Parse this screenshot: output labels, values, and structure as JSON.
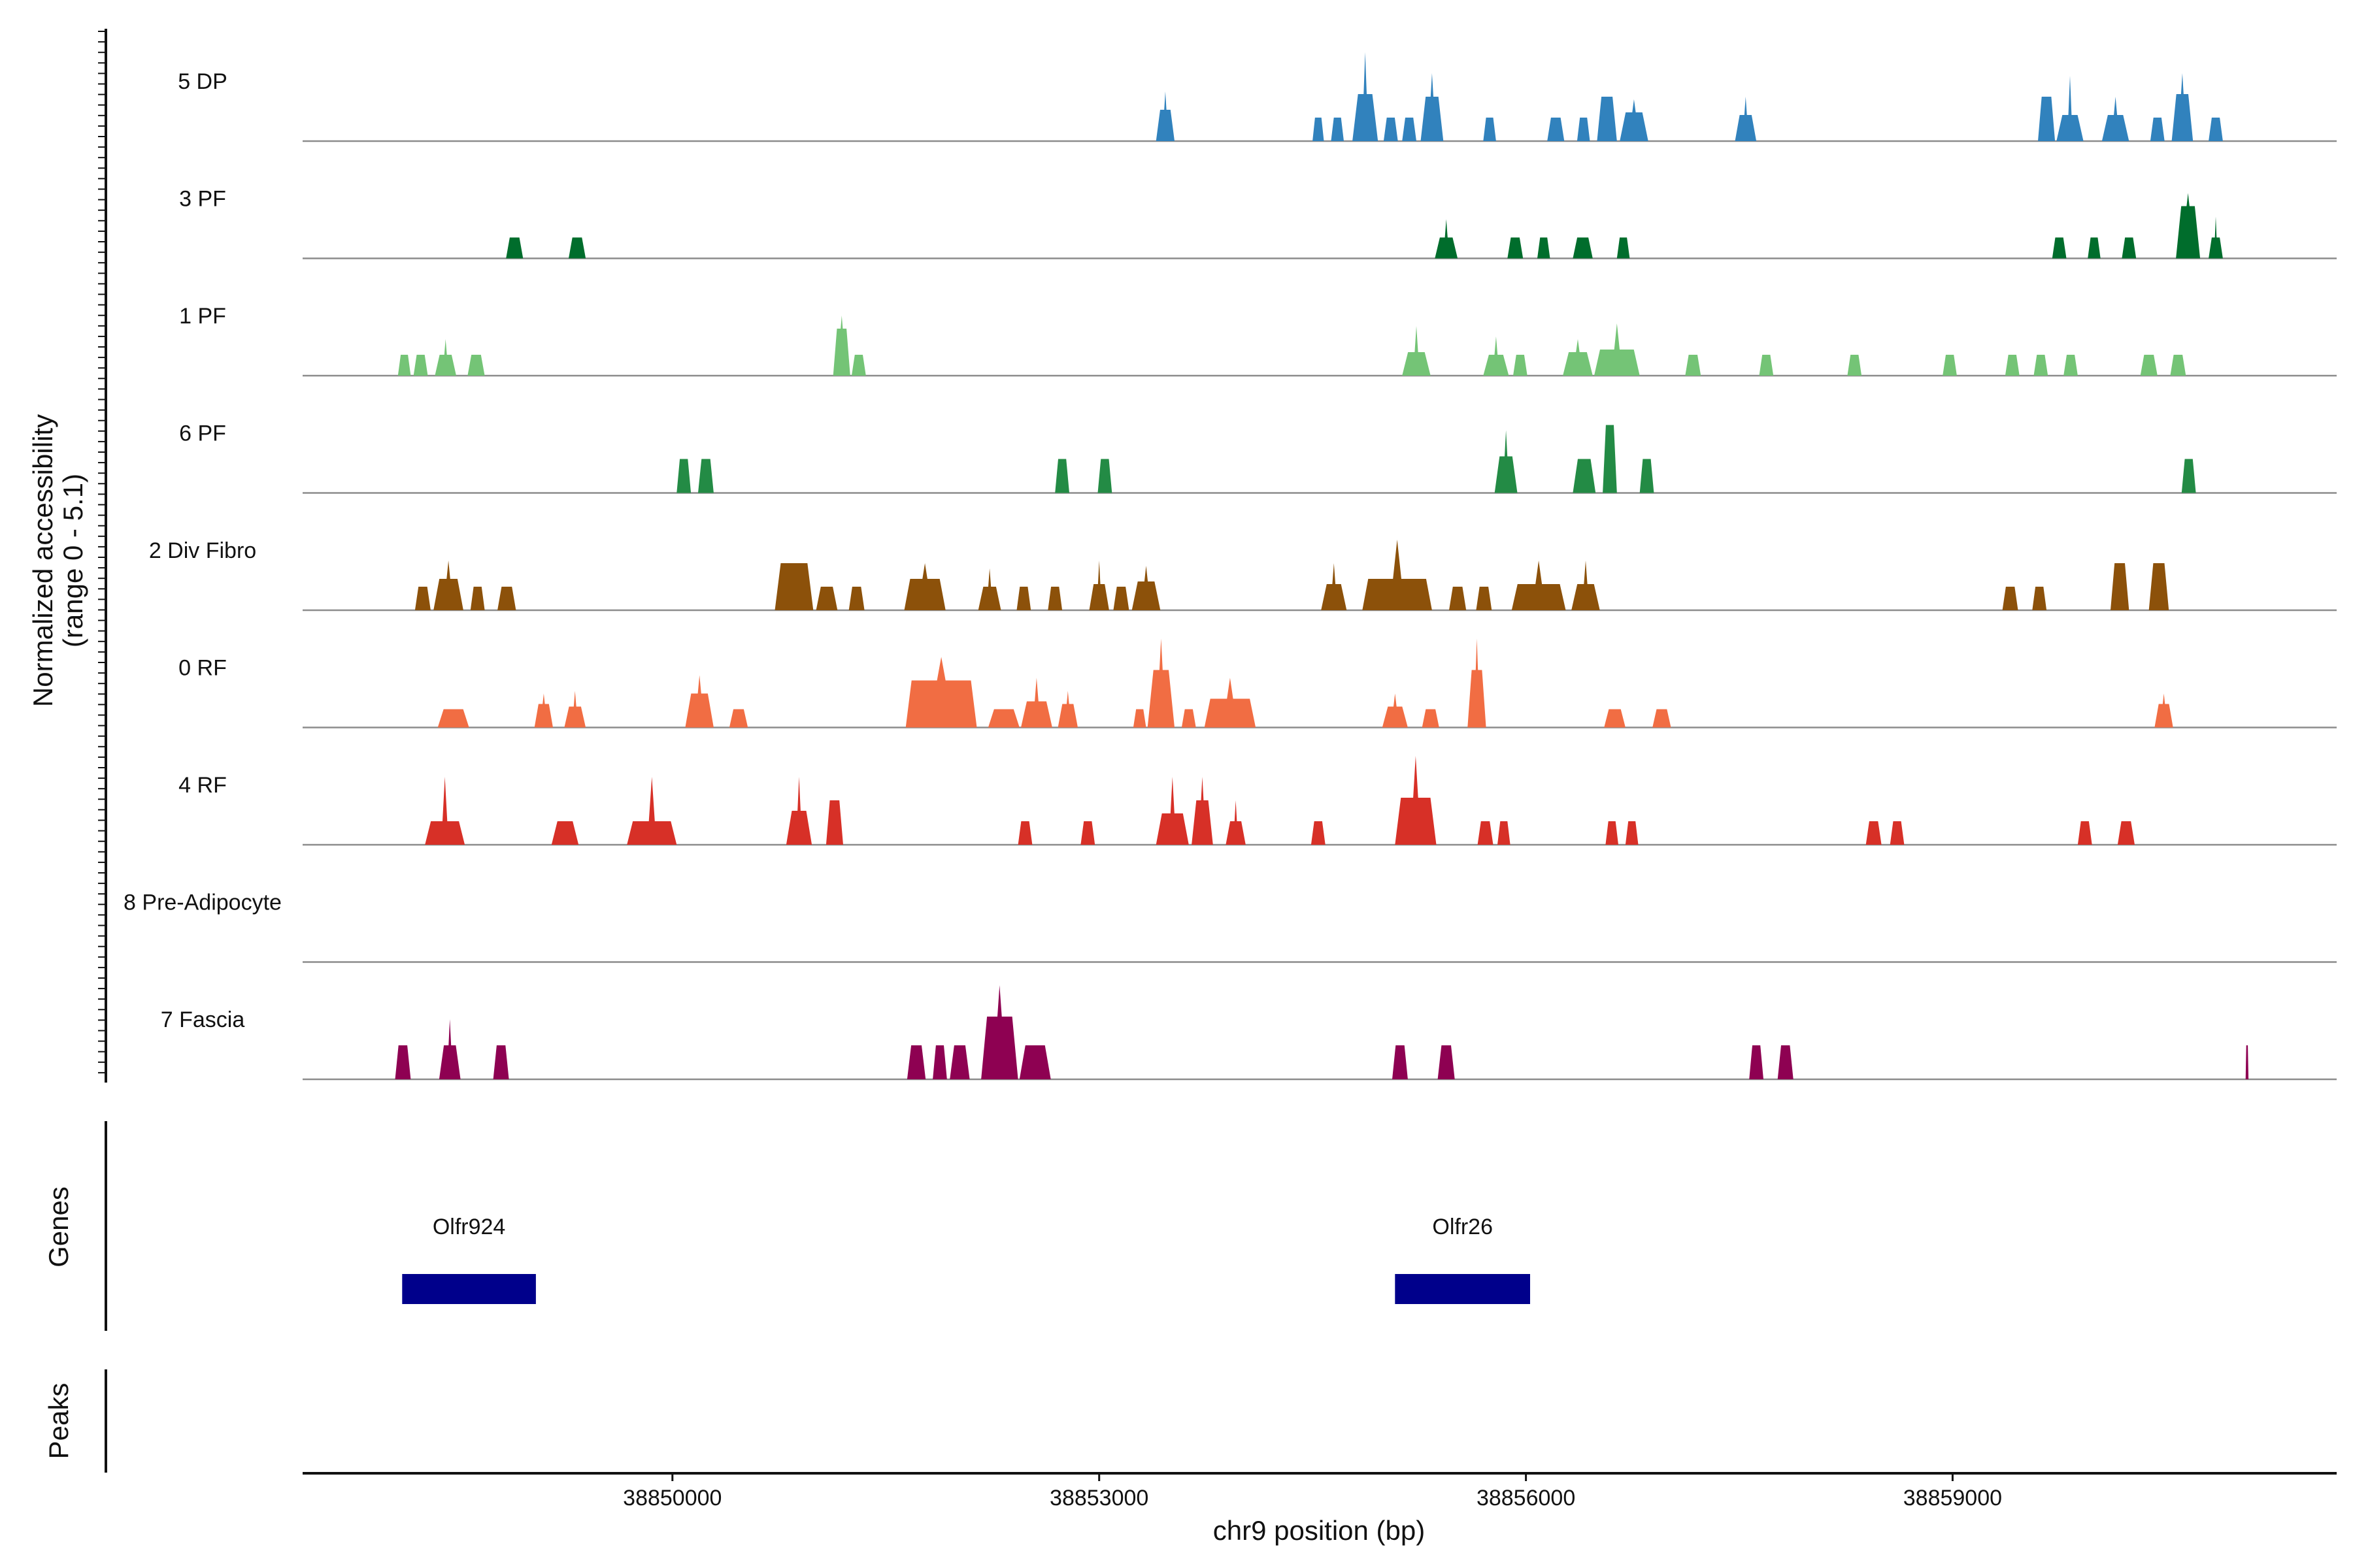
{
  "chart_data": {
    "type": "area",
    "title": "",
    "y_axis_title": "Normalized accessibility",
    "y_axis_range_label": "(range 0 - 5.1)",
    "y_range": [
      0,
      5.1
    ],
    "x_axis_title": "chr9 position (bp)",
    "x_range": [
      38847400,
      38861700
    ],
    "x_ticks": [
      38850000,
      38853000,
      38856000,
      38859000
    ],
    "x_tick_labels": [
      "38850000",
      "38853000",
      "38856000",
      "38859000"
    ],
    "genes_panel_title": "Genes",
    "peaks_panel_title": "Peaks",
    "tracks": [
      {
        "name": "5 DP",
        "color": "#3182bd",
        "peaks": [
          [
            38853400,
            38853530,
            1.2,
            1.9
          ],
          [
            38854500,
            38854580,
            0.9,
            0.9
          ],
          [
            38854630,
            38854720,
            0.9,
            0.9
          ],
          [
            38854780,
            38854960,
            1.8,
            3.4
          ],
          [
            38855000,
            38855100,
            0.9,
            0.9
          ],
          [
            38855130,
            38855230,
            0.9,
            0.9
          ],
          [
            38855260,
            38855420,
            1.7,
            2.6
          ],
          [
            38855700,
            38855790,
            0.9,
            0.9
          ],
          [
            38856150,
            38856270,
            0.9,
            0.9
          ],
          [
            38856360,
            38856450,
            0.9,
            0.9
          ],
          [
            38856500,
            38856640,
            1.7,
            1.7
          ],
          [
            38856660,
            38856860,
            1.1,
            1.6
          ],
          [
            38857470,
            38857620,
            1.0,
            1.7
          ],
          [
            38859600,
            38859720,
            1.7,
            1.7
          ],
          [
            38859730,
            38859920,
            1.0,
            2.5
          ],
          [
            38860050,
            38860240,
            1.0,
            1.7
          ],
          [
            38860390,
            38860490,
            0.9,
            0.9
          ],
          [
            38860540,
            38860690,
            1.8,
            2.6
          ],
          [
            38860800,
            38860900,
            0.9,
            0.9
          ]
        ]
      },
      {
        "name": "3 PF",
        "color": "#006d2c",
        "peaks": [
          [
            38848830,
            38848950,
            0.8,
            0.8
          ],
          [
            38849270,
            38849390,
            0.8,
            0.8
          ],
          [
            38855360,
            38855520,
            0.8,
            1.5
          ],
          [
            38855870,
            38855980,
            0.8,
            0.8
          ],
          [
            38856080,
            38856170,
            0.8,
            0.8
          ],
          [
            38856330,
            38856470,
            0.8,
            0.8
          ],
          [
            38856640,
            38856730,
            0.8,
            0.8
          ],
          [
            38859700,
            38859800,
            0.8,
            0.8
          ],
          [
            38859950,
            38860040,
            0.8,
            0.8
          ],
          [
            38860190,
            38860290,
            0.8,
            0.8
          ],
          [
            38860570,
            38860740,
            2.0,
            2.5
          ],
          [
            38860800,
            38860900,
            0.8,
            1.6
          ]
        ]
      },
      {
        "name": "1 PF",
        "color": "#74c476",
        "peaks": [
          [
            38848070,
            38848160,
            0.8,
            0.8
          ],
          [
            38848180,
            38848280,
            0.8,
            0.8
          ],
          [
            38848330,
            38848480,
            0.8,
            1.4
          ],
          [
            38848560,
            38848680,
            0.8,
            0.8
          ],
          [
            38851130,
            38851250,
            1.8,
            2.3
          ],
          [
            38851260,
            38851360,
            0.8,
            0.8
          ],
          [
            38855130,
            38855330,
            0.9,
            1.9
          ],
          [
            38855700,
            38855880,
            0.8,
            1.5
          ],
          [
            38855910,
            38856010,
            0.8,
            0.8
          ],
          [
            38856260,
            38856470,
            0.9,
            1.4
          ],
          [
            38856480,
            38856800,
            1.0,
            2.0
          ],
          [
            38857120,
            38857230,
            0.8,
            0.8
          ],
          [
            38857640,
            38857740,
            0.8,
            0.8
          ],
          [
            38858260,
            38858360,
            0.8,
            0.8
          ],
          [
            38858930,
            38859030,
            0.8,
            0.8
          ],
          [
            38859370,
            38859470,
            0.8,
            0.8
          ],
          [
            38859570,
            38859670,
            0.8,
            0.8
          ],
          [
            38859780,
            38859880,
            0.8,
            0.8
          ],
          [
            38860320,
            38860440,
            0.8,
            0.8
          ],
          [
            38860530,
            38860640,
            0.8,
            0.8
          ]
        ]
      },
      {
        "name": "6 PF",
        "color": "#238b45",
        "peaks": [
          [
            38850030,
            38850130,
            1.3,
            1.3
          ],
          [
            38850180,
            38850290,
            1.3,
            1.3
          ],
          [
            38852690,
            38852790,
            1.3,
            1.3
          ],
          [
            38852990,
            38853090,
            1.3,
            1.3
          ],
          [
            38855780,
            38855940,
            1.4,
            2.4
          ],
          [
            38856330,
            38856490,
            1.3,
            1.3
          ],
          [
            38856540,
            38856640,
            2.6,
            2.6
          ],
          [
            38856800,
            38856900,
            1.3,
            1.3
          ],
          [
            38860610,
            38860710,
            1.3,
            1.3
          ]
        ]
      },
      {
        "name": "2 Div Fibro",
        "color": "#8c510a",
        "peaks": [
          [
            38848190,
            38848300,
            0.9,
            0.9
          ],
          [
            38848320,
            38848530,
            1.2,
            1.9
          ],
          [
            38848580,
            38848680,
            0.9,
            0.9
          ],
          [
            38848770,
            38848900,
            0.9,
            0.9
          ],
          [
            38850720,
            38850990,
            1.8,
            1.8
          ],
          [
            38851010,
            38851160,
            0.9,
            0.9
          ],
          [
            38851240,
            38851350,
            0.9,
            0.9
          ],
          [
            38851630,
            38851920,
            1.2,
            1.8
          ],
          [
            38852150,
            38852310,
            0.9,
            1.6
          ],
          [
            38852420,
            38852520,
            0.9,
            0.9
          ],
          [
            38852640,
            38852740,
            0.9,
            0.9
          ],
          [
            38852930,
            38853070,
            1.0,
            1.9
          ],
          [
            38853100,
            38853210,
            0.9,
            0.9
          ],
          [
            38853230,
            38853430,
            1.1,
            1.7
          ],
          [
            38854560,
            38854740,
            1.0,
            1.8
          ],
          [
            38854850,
            38855340,
            1.2,
            2.7
          ],
          [
            38855460,
            38855580,
            0.9,
            0.9
          ],
          [
            38855650,
            38855760,
            0.9,
            0.9
          ],
          [
            38855900,
            38856280,
            1.0,
            1.9
          ],
          [
            38856320,
            38856520,
            1.0,
            1.9
          ],
          [
            38859350,
            38859460,
            0.9,
            0.9
          ],
          [
            38859560,
            38859660,
            0.9,
            0.9
          ],
          [
            38860110,
            38860240,
            1.8,
            1.8
          ],
          [
            38860380,
            38860520,
            1.8,
            1.8
          ]
        ]
      },
      {
        "name": "0 RF",
        "color": "#f16d43",
        "peaks": [
          [
            38848350,
            38848570,
            0.7,
            0.7
          ],
          [
            38849030,
            38849160,
            0.9,
            1.3
          ],
          [
            38849240,
            38849390,
            0.8,
            1.4
          ],
          [
            38850090,
            38850290,
            1.3,
            2.0
          ],
          [
            38850400,
            38850530,
            0.7,
            0.7
          ],
          [
            38851640,
            38852140,
            1.8,
            2.7
          ],
          [
            38852220,
            38852440,
            0.7,
            0.7
          ],
          [
            38852450,
            38852670,
            1.0,
            1.9
          ],
          [
            38852710,
            38852850,
            0.9,
            1.4
          ],
          [
            38853240,
            38853330,
            0.7,
            0.7
          ],
          [
            38853340,
            38853530,
            2.2,
            3.4
          ],
          [
            38853580,
            38853680,
            0.7,
            0.7
          ],
          [
            38853740,
            38854100,
            1.1,
            1.9
          ],
          [
            38854990,
            38855170,
            0.8,
            1.3
          ],
          [
            38855270,
            38855390,
            0.7,
            0.7
          ],
          [
            38855590,
            38855720,
            2.2,
            3.4
          ],
          [
            38856550,
            38856700,
            0.7,
            0.7
          ],
          [
            38856890,
            38857020,
            0.7,
            0.7
          ],
          [
            38860420,
            38860550,
            0.9,
            1.3
          ]
        ]
      },
      {
        "name": "4 RF",
        "color": "#d73027",
        "peaks": [
          [
            38848260,
            38848540,
            0.9,
            2.6
          ],
          [
            38849150,
            38849340,
            0.9,
            0.9
          ],
          [
            38849680,
            38850030,
            0.9,
            2.6
          ],
          [
            38850800,
            38850980,
            1.3,
            2.6
          ],
          [
            38851080,
            38851200,
            1.7,
            1.7
          ],
          [
            38852430,
            38852530,
            0.9,
            0.9
          ],
          [
            38852870,
            38852970,
            0.9,
            0.9
          ],
          [
            38853400,
            38853630,
            1.2,
            2.6
          ],
          [
            38853650,
            38853800,
            1.7,
            2.6
          ],
          [
            38853890,
            38854030,
            0.9,
            1.7
          ],
          [
            38854490,
            38854590,
            0.9,
            0.9
          ],
          [
            38855080,
            38855370,
            1.8,
            3.4
          ],
          [
            38855660,
            38855770,
            0.9,
            0.9
          ],
          [
            38855800,
            38855890,
            0.9,
            0.9
          ],
          [
            38856560,
            38856650,
            0.9,
            0.9
          ],
          [
            38856700,
            38856790,
            0.9,
            0.9
          ],
          [
            38858390,
            38858500,
            0.9,
            0.9
          ],
          [
            38858560,
            38858660,
            0.9,
            0.9
          ],
          [
            38859880,
            38859980,
            0.9,
            0.9
          ],
          [
            38860160,
            38860280,
            0.9,
            0.9
          ]
        ]
      },
      {
        "name": "8 Pre-Adipocyte",
        "color": "#4d4d4d",
        "peaks": []
      },
      {
        "name": "7 Fascia",
        "color": "#8e0152",
        "peaks": [
          [
            38848050,
            38848160,
            1.3,
            1.3
          ],
          [
            38848360,
            38848510,
            1.3,
            2.3
          ],
          [
            38848740,
            38848850,
            1.3,
            1.3
          ],
          [
            38851650,
            38851780,
            1.3,
            1.3
          ],
          [
            38851830,
            38851930,
            1.3,
            1.3
          ],
          [
            38851950,
            38852090,
            1.3,
            1.3
          ],
          [
            38852170,
            38852430,
            2.4,
            3.6
          ],
          [
            38852440,
            38852660,
            1.3,
            1.3
          ],
          [
            38855060,
            38855170,
            1.3,
            1.3
          ],
          [
            38855380,
            38855500,
            1.3,
            1.3
          ],
          [
            38857570,
            38857670,
            1.3,
            1.3
          ],
          [
            38857770,
            38857880,
            1.3,
            1.3
          ],
          [
            38861060,
            38861080,
            1.3,
            1.3
          ]
        ]
      }
    ],
    "genes": [
      {
        "name": "Olfr924",
        "start": 38848100,
        "end": 38849040,
        "color": "#00008b"
      },
      {
        "name": "Olfr26",
        "start": 38855080,
        "end": 38856030,
        "color": "#00008b"
      }
    ]
  }
}
